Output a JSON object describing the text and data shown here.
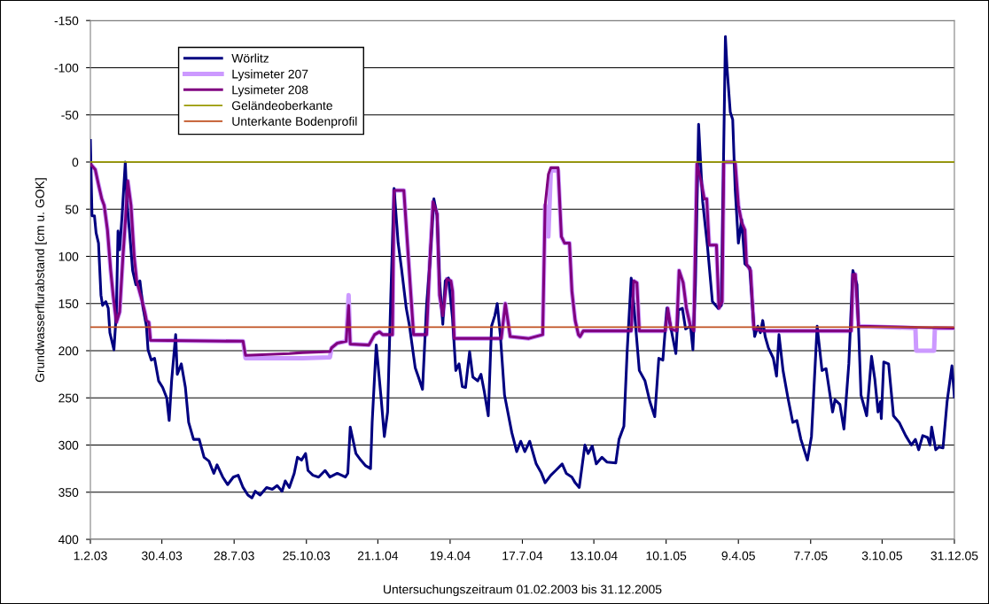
{
  "chart_data": {
    "type": "line",
    "xlabel": "Untersuchungszeitraum 01.02.2003 bis 31.12.2005",
    "ylabel": "Grundwasserflurabstand [cm u. GOK]",
    "xlim": [
      "2003-02-01",
      "2005-12-31"
    ],
    "xticks": [
      {
        "value": "2003-02-01",
        "label": "1.2.03"
      },
      {
        "value": "2003-04-30",
        "label": "30.4.03"
      },
      {
        "value": "2003-07-28",
        "label": "28.7.03"
      },
      {
        "value": "2003-10-25",
        "label": "25.10.03"
      },
      {
        "value": "2004-01-21",
        "label": "21.1.04"
      },
      {
        "value": "2004-04-19",
        "label": "19.4.04"
      },
      {
        "value": "2004-07-17",
        "label": "17.7.04"
      },
      {
        "value": "2004-10-13",
        "label": "13.10.04"
      },
      {
        "value": "2005-01-10",
        "label": "10.1.05"
      },
      {
        "value": "2005-04-09",
        "label": "9.4.05"
      },
      {
        "value": "2005-07-07",
        "label": "7.7.05"
      },
      {
        "value": "2005-10-03",
        "label": "3.10.05"
      },
      {
        "value": "2005-12-31",
        "label": "31.12.05"
      }
    ],
    "ylim": [
      400,
      -150
    ],
    "yticks": [
      -150,
      -100,
      -50,
      0,
      50,
      100,
      150,
      200,
      250,
      300,
      350,
      400
    ],
    "grid": "y",
    "legend": "top left",
    "line_style": "solid",
    "marker": "none",
    "series": [
      {
        "name": "Wörlitz",
        "color": "#000080",
        "x": [
          "2003-02-01",
          "2003-02-03",
          "2003-02-06",
          "2003-02-08",
          "2003-02-11",
          "2003-02-14",
          "2003-02-16",
          "2003-02-20",
          "2003-02-23",
          "2003-02-25",
          "2003-03-02",
          "2003-03-05",
          "2003-03-07",
          "2003-03-09",
          "2003-03-12",
          "2003-03-16",
          "2003-03-18",
          "2003-03-21",
          "2003-03-25",
          "2003-03-29",
          "2003-04-03",
          "2003-04-07",
          "2003-04-11",
          "2003-04-13",
          "2003-04-17",
          "2003-04-21",
          "2003-04-26",
          "2003-05-01",
          "2003-05-06",
          "2003-05-09",
          "2003-05-12",
          "2003-05-17",
          "2003-05-19",
          "2003-05-24",
          "2003-05-29",
          "2003-06-02",
          "2003-06-08",
          "2003-06-15",
          "2003-06-21",
          "2003-06-27",
          "2003-07-03",
          "2003-07-07",
          "2003-07-14",
          "2003-07-20",
          "2003-07-27",
          "2003-08-02",
          "2003-08-08",
          "2003-08-14",
          "2003-08-19",
          "2003-08-23",
          "2003-08-29",
          "2003-09-06",
          "2003-09-13",
          "2003-09-19",
          "2003-09-25",
          "2003-09-29",
          "2003-10-04",
          "2003-10-10",
          "2003-10-14",
          "2003-10-19",
          "2003-10-24",
          "2003-10-27",
          "2003-11-02",
          "2003-11-09",
          "2003-11-17",
          "2003-11-23",
          "2003-12-02",
          "2003-12-12",
          "2003-12-15",
          "2003-12-18",
          "2003-12-25",
          "2003-12-31",
          "2004-01-06",
          "2004-01-12",
          "2004-01-14",
          "2004-01-19",
          "2004-01-25",
          "2004-01-29",
          "2004-02-02",
          "2004-02-06",
          "2004-02-10",
          "2004-02-15",
          "2004-02-19",
          "2004-02-25",
          "2004-02-29",
          "2004-03-07",
          "2004-03-11",
          "2004-03-16",
          "2004-03-21",
          "2004-03-25",
          "2004-03-30",
          "2004-04-03",
          "2004-04-06",
          "2004-04-10",
          "2004-04-13",
          "2004-04-17",
          "2004-04-22",
          "2004-04-26",
          "2004-04-30",
          "2004-05-04",
          "2004-05-08",
          "2004-05-13",
          "2004-05-17",
          "2004-05-23",
          "2004-05-27",
          "2004-05-31",
          "2004-06-05",
          "2004-06-09",
          "2004-06-13",
          "2004-06-16",
          "2004-06-20",
          "2004-06-25",
          "2004-07-04",
          "2004-07-10",
          "2004-07-15",
          "2004-07-20",
          "2004-07-26",
          "2004-08-03",
          "2004-08-09",
          "2004-08-14",
          "2004-08-21",
          "2004-08-27",
          "2004-09-04",
          "2004-09-09",
          "2004-09-16",
          "2004-09-20",
          "2004-09-25",
          "2004-10-02",
          "2004-10-06",
          "2004-10-11",
          "2004-10-16",
          "2004-10-23",
          "2004-10-29",
          "2004-11-09",
          "2004-11-13",
          "2004-11-19",
          "2004-11-23",
          "2004-11-28",
          "2004-12-02",
          "2004-12-08",
          "2004-12-15",
          "2004-12-21",
          "2004-12-27",
          "2005-01-01",
          "2005-01-06",
          "2005-01-11",
          "2005-01-17",
          "2005-01-22",
          "2005-01-25",
          "2005-01-30",
          "2005-02-03",
          "2005-02-09",
          "2005-02-12",
          "2005-02-15",
          "2005-02-19",
          "2005-02-24",
          "2005-03-02",
          "2005-03-08",
          "2005-03-15",
          "2005-03-19",
          "2005-03-24",
          "2005-03-26",
          "2005-03-30",
          "2005-04-02",
          "2005-04-05",
          "2005-04-09",
          "2005-04-13",
          "2005-04-17",
          "2005-04-23",
          "2005-04-29",
          "2005-05-03",
          "2005-05-06",
          "2005-05-09",
          "2005-05-12",
          "2005-05-16",
          "2005-05-22",
          "2005-05-26",
          "2005-05-29",
          "2005-06-03",
          "2005-06-09",
          "2005-06-15",
          "2005-06-20",
          "2005-06-25",
          "2005-07-03",
          "2005-07-08",
          "2005-07-15",
          "2005-07-21",
          "2005-07-26",
          "2005-08-03",
          "2005-08-06",
          "2005-08-12",
          "2005-08-17",
          "2005-08-23",
          "2005-08-28",
          "2005-09-02",
          "2005-09-07",
          "2005-09-14",
          "2005-09-20",
          "2005-09-24",
          "2005-09-28",
          "2005-10-01",
          "2005-10-02",
          "2005-10-05",
          "2005-10-11",
          "2005-10-17",
          "2005-10-24",
          "2005-11-01",
          "2005-11-08",
          "2005-11-13",
          "2005-11-17",
          "2005-11-22",
          "2005-11-28",
          "2005-12-01",
          "2005-12-03",
          "2005-12-08",
          "2005-12-12",
          "2005-12-17",
          "2005-12-22",
          "2005-12-28",
          "2005-12-31"
        ],
        "values": [
          -23,
          57,
          57,
          75,
          86,
          141,
          152,
          148,
          155,
          181,
          199,
          159,
          73,
          93,
          57,
          0,
          42,
          72,
          115,
          130,
          126,
          155,
          174,
          199,
          210,
          208,
          232,
          239,
          250,
          274,
          232,
          183,
          225,
          214,
          239,
          276,
          294,
          294,
          313,
          317,
          330,
          321,
          334,
          342,
          334,
          332,
          345,
          353,
          356,
          349,
          353,
          345,
          347,
          343,
          349,
          338,
          345,
          330,
          313,
          316,
          309,
          327,
          332,
          334,
          327,
          334,
          330,
          334,
          330,
          281,
          309,
          316,
          322,
          325,
          276,
          194,
          250,
          291,
          265,
          141,
          28,
          86,
          112,
          155,
          174,
          218,
          228,
          241,
          152,
          108,
          39,
          57,
          126,
          172,
          126,
          123,
          166,
          221,
          214,
          238,
          239,
          201,
          228,
          232,
          225,
          243,
          269,
          174,
          163,
          150,
          185,
          247,
          287,
          307,
          296,
          307,
          296,
          320,
          329,
          340,
          332,
          327,
          320,
          330,
          334,
          340,
          345,
          300,
          309,
          301,
          320,
          313,
          318,
          319,
          294,
          280,
          201,
          123,
          159,
          221,
          232,
          254,
          270,
          208,
          210,
          155,
          181,
          203,
          157,
          155,
          177,
          174,
          199,
          130,
          -40,
          42,
          90,
          148,
          155,
          152,
          -133,
          -100,
          -53,
          -45,
          28,
          86,
          61,
          108,
          112,
          185,
          174,
          181,
          168,
          185,
          197,
          208,
          227,
          183,
          221,
          250,
          276,
          274,
          294,
          316,
          291,
          174,
          221,
          219,
          265,
          252,
          257,
          283,
          214,
          115,
          130,
          247,
          269,
          206,
          230,
          265,
          254,
          272,
          212,
          214,
          269,
          276,
          290,
          300,
          294,
          305,
          290,
          292,
          300,
          281,
          305,
          302,
          303,
          254,
          216,
          249
        ]
      },
      {
        "name": "Lysimeter 207",
        "color": "#cc99ff",
        "x": [
          "2003-02-01",
          "2003-02-07",
          "2003-02-11",
          "2003-02-15",
          "2003-02-18",
          "2003-02-22",
          "2003-02-26",
          "2003-03-01",
          "2003-03-05",
          "2003-03-09",
          "2003-03-13",
          "2003-03-16",
          "2003-03-19",
          "2003-03-23",
          "2003-03-27",
          "2003-03-30",
          "2003-04-05",
          "2003-04-09",
          "2003-04-11",
          "2003-04-14",
          "2003-04-16",
          "2003-08-08",
          "2003-08-11",
          "2003-10-04",
          "2003-10-20",
          "2003-11-23",
          "2003-11-25",
          "2003-12-02",
          "2003-12-13",
          "2003-12-16",
          "2003-12-18",
          "2004-01-10",
          "2004-01-17",
          "2004-01-23",
          "2004-01-27",
          "2004-02-08",
          "2004-02-10",
          "2004-02-22",
          "2004-03-05",
          "2004-03-21",
          "2004-03-25",
          "2004-03-29",
          "2004-04-03",
          "2004-04-06",
          "2004-04-10",
          "2004-04-15",
          "2004-04-20",
          "2004-04-22",
          "2004-04-24",
          "2004-06-21",
          "2004-06-26",
          "2004-07-02",
          "2004-07-25",
          "2004-08-11",
          "2004-08-14",
          "2004-08-18",
          "2004-08-21",
          "2004-08-30",
          "2004-09-03",
          "2004-09-07",
          "2004-09-13",
          "2004-09-16",
          "2004-09-20",
          "2004-09-24",
          "2004-09-26",
          "2004-09-30",
          "2004-11-28",
          "2004-12-01",
          "2004-12-05",
          "2004-12-08",
          "2005-01-09",
          "2005-01-12",
          "2005-01-16",
          "2005-01-23",
          "2005-01-26",
          "2005-01-31",
          "2005-02-04",
          "2005-02-09",
          "2005-02-13",
          "2005-02-17",
          "2005-02-22",
          "2005-02-26",
          "2005-03-01",
          "2005-03-04",
          "2005-03-13",
          "2005-03-16",
          "2005-03-20",
          "2005-03-22",
          "2005-04-05",
          "2005-04-09",
          "2005-04-13",
          "2005-04-17",
          "2005-04-19",
          "2005-04-24",
          "2005-04-28",
          "2005-05-10",
          "2005-08-26",
          "2005-08-28",
          "2005-08-31",
          "2005-09-04",
          "2005-11-13",
          "2005-11-14",
          "2005-12-06",
          "2005-12-07",
          "2005-12-31"
        ],
        "values": [
          2,
          8,
          24,
          39,
          46,
          72,
          115,
          141,
          170,
          159,
          101,
          64,
          20,
          46,
          101,
          126,
          145,
          159,
          168,
          170,
          189,
          190,
          208,
          208,
          208,
          207,
          197,
          192,
          190,
          141,
          193,
          194,
          183,
          180,
          183,
          183,
          30,
          30,
          183,
          183,
          106,
          42,
          55,
          141,
          163,
          124,
          126,
          137,
          187,
          187,
          150,
          185,
          187,
          183,
          46,
          79,
          9,
          9,
          79,
          86,
          86,
          137,
          168,
          183,
          185,
          179,
          179,
          126,
          128,
          179,
          179,
          155,
          177,
          179,
          115,
          128,
          155,
          174,
          179,
          2,
          20,
          39,
          39,
          88,
          88,
          155,
          148,
          0,
          0,
          46,
          64,
          72,
          108,
          115,
          177,
          179,
          179,
          119,
          119,
          174,
          176,
          200,
          200,
          176,
          176
        ]
      },
      {
        "name": "Lysimeter 208",
        "color": "#800080",
        "x": [
          "2003-02-01",
          "2003-02-07",
          "2003-02-11",
          "2003-02-15",
          "2003-02-18",
          "2003-02-22",
          "2003-02-26",
          "2003-03-01",
          "2003-03-05",
          "2003-03-09",
          "2003-03-13",
          "2003-03-16",
          "2003-03-19",
          "2003-03-23",
          "2003-03-27",
          "2003-03-30",
          "2003-04-05",
          "2003-04-09",
          "2003-04-11",
          "2003-04-14",
          "2003-04-16",
          "2003-08-08",
          "2003-08-11",
          "2003-10-04",
          "2003-10-20",
          "2003-11-23",
          "2003-11-25",
          "2003-12-02",
          "2003-12-13",
          "2003-12-16",
          "2003-12-18",
          "2004-01-10",
          "2004-01-17",
          "2004-01-23",
          "2004-01-27",
          "2004-02-08",
          "2004-02-10",
          "2004-02-22",
          "2004-03-05",
          "2004-03-21",
          "2004-03-25",
          "2004-03-29",
          "2004-04-03",
          "2004-04-06",
          "2004-04-10",
          "2004-04-15",
          "2004-04-20",
          "2004-04-22",
          "2004-04-24",
          "2004-06-21",
          "2004-06-26",
          "2004-07-02",
          "2004-07-25",
          "2004-08-11",
          "2004-08-14",
          "2004-08-18",
          "2004-08-21",
          "2004-08-30",
          "2004-09-03",
          "2004-09-07",
          "2004-09-13",
          "2004-09-16",
          "2004-09-20",
          "2004-09-24",
          "2004-09-26",
          "2004-09-30",
          "2004-11-28",
          "2004-12-01",
          "2004-12-05",
          "2004-12-08",
          "2005-01-09",
          "2005-01-12",
          "2005-01-16",
          "2005-01-23",
          "2005-01-26",
          "2005-01-31",
          "2005-02-04",
          "2005-02-09",
          "2005-02-13",
          "2005-02-17",
          "2005-02-22",
          "2005-02-26",
          "2005-03-01",
          "2005-03-04",
          "2005-03-13",
          "2005-03-16",
          "2005-03-20",
          "2005-03-22",
          "2005-04-05",
          "2005-04-09",
          "2005-04-13",
          "2005-04-17",
          "2005-04-19",
          "2005-04-24",
          "2005-04-28",
          "2005-05-10",
          "2005-08-26",
          "2005-08-28",
          "2005-08-31",
          "2005-09-04",
          "2005-12-31"
        ],
        "values": [
          2,
          8,
          24,
          39,
          46,
          72,
          115,
          141,
          170,
          159,
          101,
          64,
          20,
          46,
          101,
          126,
          145,
          159,
          168,
          170,
          189,
          190,
          205,
          203,
          202,
          201,
          197,
          192,
          190,
          152,
          193,
          194,
          183,
          180,
          183,
          183,
          30,
          30,
          183,
          183,
          106,
          42,
          55,
          141,
          163,
          124,
          126,
          137,
          187,
          187,
          150,
          185,
          187,
          183,
          46,
          13,
          6,
          6,
          79,
          86,
          86,
          137,
          168,
          183,
          185,
          179,
          179,
          126,
          128,
          179,
          179,
          155,
          177,
          179,
          115,
          128,
          155,
          174,
          179,
          2,
          20,
          39,
          39,
          88,
          88,
          155,
          148,
          0,
          0,
          46,
          64,
          72,
          108,
          115,
          177,
          179,
          179,
          119,
          119,
          174,
          176
        ]
      },
      {
        "name": "Geländeoberkante",
        "color": "#999900",
        "x": [
          "2003-02-01",
          "2005-12-31"
        ],
        "values": [
          0,
          0
        ]
      },
      {
        "name": "Unterkante Bodenprofil",
        "color": "#c05020",
        "x": [
          "2003-02-01",
          "2005-12-31"
        ],
        "values": [
          175,
          175
        ]
      }
    ]
  }
}
